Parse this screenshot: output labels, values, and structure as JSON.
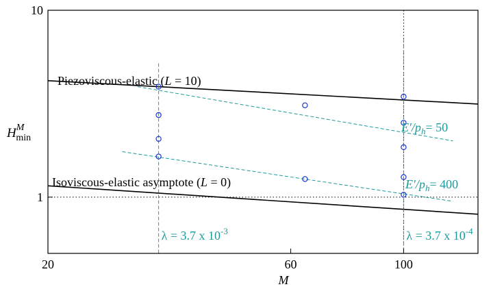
{
  "chart_data": {
    "type": "line",
    "title": "",
    "xlabel": "M",
    "ylabel": {
      "base": "H",
      "sup": "M",
      "sub": "min"
    },
    "xscale": "log",
    "yscale": "log",
    "xlim": [
      20,
      140
    ],
    "ylim": [
      0.5,
      10
    ],
    "x_ticks": [
      {
        "value": 20,
        "label": "20"
      },
      {
        "value": 60,
        "label": "60"
      },
      {
        "value": 100,
        "label": "100"
      }
    ],
    "y_ticks": [
      {
        "value": 1,
        "label": "1"
      },
      {
        "value": 10,
        "label": "10"
      }
    ],
    "reference_lines": [
      {
        "orientation": "horizontal",
        "value": 1,
        "style": "dotted"
      },
      {
        "orientation": "horizontal",
        "value": 10,
        "style": "dotted"
      },
      {
        "orientation": "vertical",
        "value": 100,
        "style": "dotted"
      }
    ],
    "curves": [
      {
        "label": "Piezoviscous-elastic (L = 10)",
        "label_parts": {
          "pre": "Piezoviscous-elastic (",
          "var": "L",
          "post": " = 10)"
        },
        "style": "solid",
        "color": "#000000",
        "points": [
          [
            20,
            4.2
          ],
          [
            140,
            3.15
          ]
        ]
      },
      {
        "label": "Isoviscous-elastic asymptote (L = 0)",
        "label_parts": {
          "pre": "Isoviscous-elastic asymptote (",
          "var": "L",
          "post": " = 0)"
        },
        "style": "solid",
        "color": "#000000",
        "points": [
          [
            20,
            1.15
          ],
          [
            140,
            0.81
          ]
        ]
      }
    ],
    "series": [
      {
        "label": "E′/p_h = 50",
        "label_parts": {
          "pre": "E′/p",
          "sub": "h",
          "post": "= 50"
        },
        "color": "#1a9a9a",
        "fit": [
          [
            30,
            3.9
          ],
          [
            125,
            2.0
          ]
        ],
        "points": [
          [
            33,
            3.9
          ],
          [
            64,
            3.1
          ],
          [
            100,
            2.5
          ]
        ]
      },
      {
        "label": "E′/p_h = 400",
        "label_parts": {
          "pre": "E′/p",
          "sub": "h",
          "post": "= 400"
        },
        "color": "#1a9a9a",
        "fit": [
          [
            28,
            1.75
          ],
          [
            125,
            0.95
          ]
        ],
        "points": [
          [
            33,
            1.65
          ],
          [
            64,
            1.25
          ],
          [
            100,
            1.03
          ]
        ]
      }
    ],
    "extra_markers": [
      {
        "x": 33,
        "y": 2.75
      },
      {
        "x": 33,
        "y": 2.05
      },
      {
        "x": 100,
        "y": 3.45
      },
      {
        "x": 100,
        "y": 1.85
      },
      {
        "x": 100,
        "y": 1.28
      }
    ],
    "marker_color": "#1a35c8",
    "verticals": [
      {
        "x": 33,
        "from": 5.2,
        "to": 0.5,
        "label": "λ = 3.7 x 10",
        "exp": "-3"
      },
      {
        "x": 100,
        "from": 7.0,
        "to": 0.5,
        "label": "λ = 3.7 x 10",
        "exp": "-4"
      }
    ]
  }
}
